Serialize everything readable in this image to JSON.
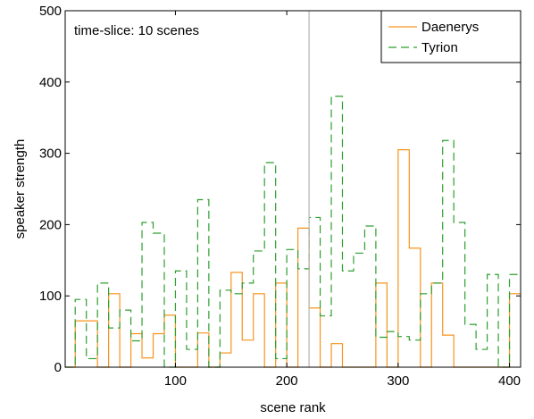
{
  "chart_data": {
    "type": "line",
    "xlabel": "scene rank",
    "ylabel": "speaker strength",
    "xlim": [
      1,
      410
    ],
    "ylim": [
      0,
      500
    ],
    "xticks": [
      100,
      200,
      300,
      400
    ],
    "yticks": [
      0,
      100,
      200,
      300,
      400,
      500
    ],
    "annotation": "time-slice: 10 scenes",
    "vline_x": 220,
    "legend_position": "top-right",
    "grid": false,
    "series": [
      {
        "name": "Daenerys",
        "color": "#f7941d",
        "dash": "none",
        "points": [
          [
            1,
            0
          ],
          [
            10,
            0
          ],
          [
            10,
            65
          ],
          [
            30,
            65
          ],
          [
            30,
            0
          ],
          [
            40,
            0
          ],
          [
            40,
            103
          ],
          [
            50,
            103
          ],
          [
            50,
            0
          ],
          [
            60,
            0
          ],
          [
            60,
            47
          ],
          [
            70,
            47
          ],
          [
            70,
            13
          ],
          [
            80,
            13
          ],
          [
            80,
            47
          ],
          [
            90,
            47
          ],
          [
            90,
            73
          ],
          [
            100,
            73
          ],
          [
            100,
            0
          ],
          [
            120,
            0
          ],
          [
            120,
            48
          ],
          [
            130,
            48
          ],
          [
            130,
            0
          ],
          [
            140,
            0
          ],
          [
            140,
            20
          ],
          [
            150,
            20
          ],
          [
            150,
            133
          ],
          [
            160,
            133
          ],
          [
            160,
            38
          ],
          [
            170,
            38
          ],
          [
            170,
            103
          ],
          [
            180,
            103
          ],
          [
            180,
            0
          ],
          [
            190,
            0
          ],
          [
            190,
            118
          ],
          [
            200,
            118
          ],
          [
            200,
            0
          ],
          [
            210,
            0
          ],
          [
            210,
            195
          ],
          [
            220,
            195
          ],
          [
            220,
            83
          ],
          [
            230,
            83
          ],
          [
            230,
            0
          ],
          [
            240,
            0
          ],
          [
            240,
            33
          ],
          [
            250,
            33
          ],
          [
            250,
            0
          ],
          [
            280,
            0
          ],
          [
            280,
            118
          ],
          [
            290,
            118
          ],
          [
            290,
            0
          ],
          [
            300,
            0
          ],
          [
            300,
            305
          ],
          [
            310,
            305
          ],
          [
            310,
            167
          ],
          [
            320,
            167
          ],
          [
            320,
            0
          ],
          [
            330,
            0
          ],
          [
            330,
            118
          ],
          [
            340,
            118
          ],
          [
            340,
            45
          ],
          [
            350,
            45
          ],
          [
            350,
            0
          ],
          [
            400,
            0
          ],
          [
            400,
            103
          ],
          [
            410,
            103
          ]
        ]
      },
      {
        "name": "Tyrion",
        "color": "#2e9e2e",
        "dash": "9,5",
        "points": [
          [
            1,
            0
          ],
          [
            10,
            0
          ],
          [
            10,
            95
          ],
          [
            20,
            95
          ],
          [
            20,
            12
          ],
          [
            30,
            12
          ],
          [
            30,
            118
          ],
          [
            40,
            118
          ],
          [
            40,
            55
          ],
          [
            50,
            55
          ],
          [
            50,
            80
          ],
          [
            60,
            80
          ],
          [
            60,
            37
          ],
          [
            70,
            37
          ],
          [
            70,
            203
          ],
          [
            80,
            203
          ],
          [
            80,
            188
          ],
          [
            90,
            188
          ],
          [
            90,
            0
          ],
          [
            100,
            0
          ],
          [
            100,
            135
          ],
          [
            110,
            135
          ],
          [
            110,
            25
          ],
          [
            120,
            25
          ],
          [
            120,
            235
          ],
          [
            130,
            235
          ],
          [
            130,
            0
          ],
          [
            140,
            0
          ],
          [
            140,
            108
          ],
          [
            150,
            108
          ],
          [
            150,
            103
          ],
          [
            160,
            103
          ],
          [
            160,
            118
          ],
          [
            170,
            118
          ],
          [
            170,
            163
          ],
          [
            180,
            163
          ],
          [
            180,
            287
          ],
          [
            190,
            287
          ],
          [
            190,
            12
          ],
          [
            200,
            12
          ],
          [
            200,
            165
          ],
          [
            210,
            165
          ],
          [
            210,
            138
          ],
          [
            220,
            138
          ],
          [
            220,
            210
          ],
          [
            230,
            210
          ],
          [
            230,
            72
          ],
          [
            240,
            72
          ],
          [
            240,
            380
          ],
          [
            250,
            380
          ],
          [
            250,
            135
          ],
          [
            260,
            135
          ],
          [
            260,
            160
          ],
          [
            270,
            160
          ],
          [
            270,
            198
          ],
          [
            280,
            198
          ],
          [
            280,
            42
          ],
          [
            290,
            42
          ],
          [
            290,
            50
          ],
          [
            300,
            50
          ],
          [
            300,
            43
          ],
          [
            310,
            43
          ],
          [
            310,
            38
          ],
          [
            320,
            38
          ],
          [
            320,
            103
          ],
          [
            330,
            103
          ],
          [
            330,
            118
          ],
          [
            340,
            118
          ],
          [
            340,
            318
          ],
          [
            350,
            318
          ],
          [
            350,
            203
          ],
          [
            360,
            203
          ],
          [
            360,
            60
          ],
          [
            370,
            60
          ],
          [
            370,
            25
          ],
          [
            380,
            25
          ],
          [
            380,
            130
          ],
          [
            390,
            130
          ],
          [
            390,
            0
          ],
          [
            400,
            0
          ],
          [
            400,
            130
          ],
          [
            410,
            130
          ]
        ]
      }
    ]
  }
}
